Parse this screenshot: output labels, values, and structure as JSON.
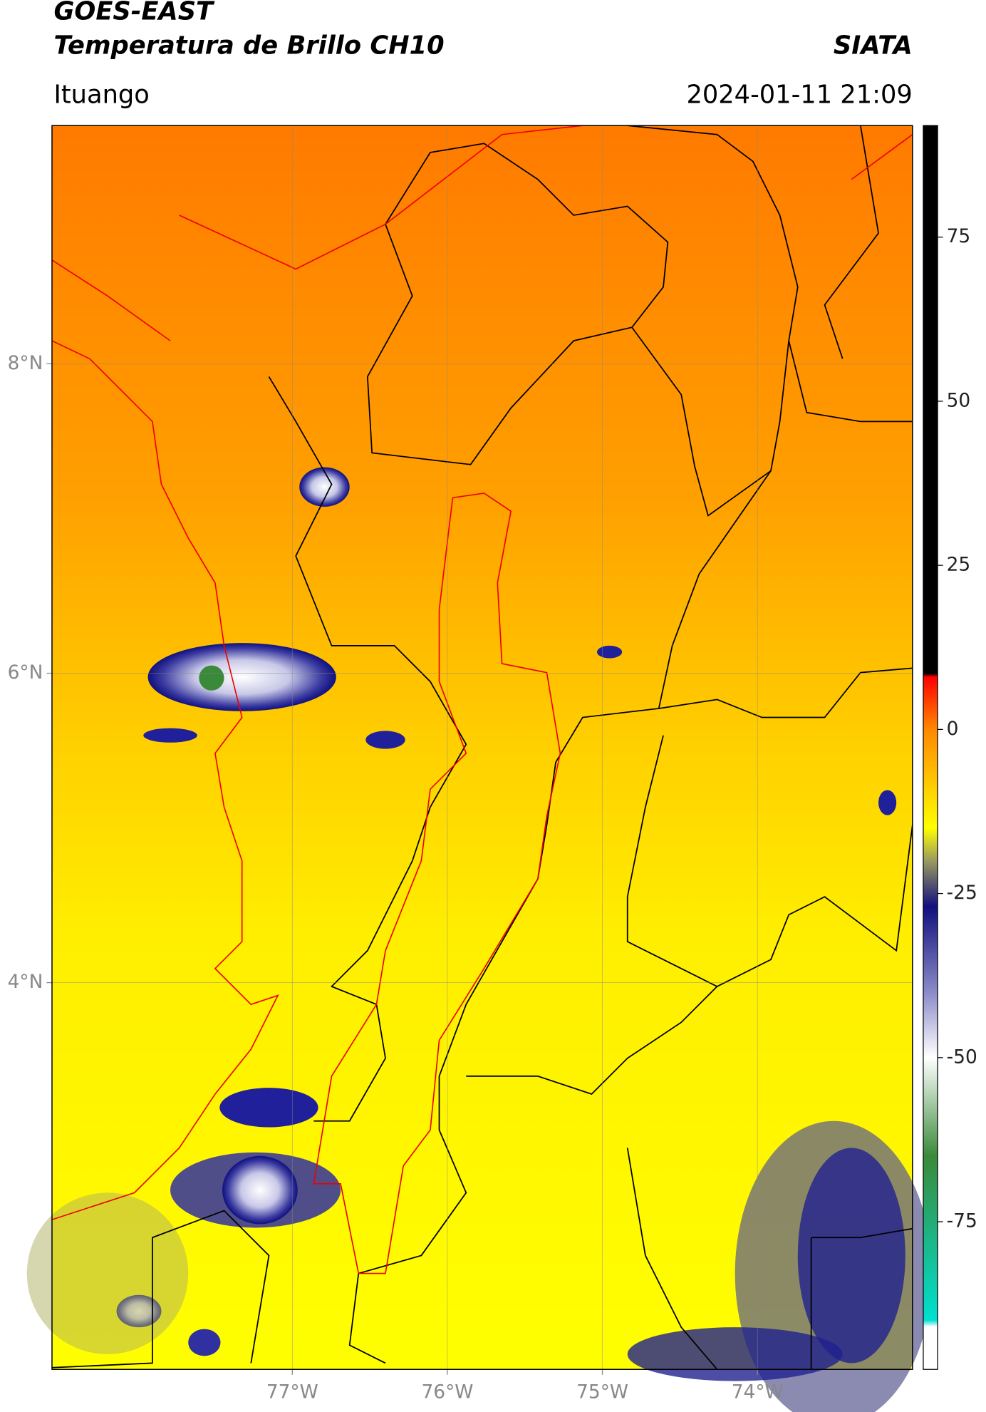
{
  "chart_data": {
    "type": "map",
    "title": "GOES-EAST",
    "subtitle": "Temperatura de Brillo CH10",
    "source": "SIATA",
    "location": "Ituango",
    "datetime": "2024-01-11 21:09",
    "xlim": [
      -78.55,
      -73.0
    ],
    "ylim": [
      1.5,
      9.54
    ],
    "xticks": [
      {
        "value": -77,
        "label": "77°W"
      },
      {
        "value": -76,
        "label": "76°W"
      },
      {
        "value": -75,
        "label": "75°W"
      },
      {
        "value": -74,
        "label": "74°W"
      }
    ],
    "yticks": [
      {
        "value": 8,
        "label": "8°N"
      },
      {
        "value": 6,
        "label": "6°N"
      },
      {
        "value": 4,
        "label": "4°N"
      }
    ],
    "grid": true,
    "clim": [
      -97.5,
      92
    ],
    "cticks": [
      75,
      50,
      25,
      0,
      -25,
      -50,
      -75
    ],
    "colormap": [
      {
        "value": 92,
        "color": "#000000"
      },
      {
        "value": 8.5,
        "color": "#000000"
      },
      {
        "value": 8,
        "color": "#ff0000"
      },
      {
        "value": 0,
        "color": "#ff8800"
      },
      {
        "value": -15,
        "color": "#ffff00"
      },
      {
        "value": -20,
        "color": "#9a9a60"
      },
      {
        "value": -27,
        "color": "#101080"
      },
      {
        "value": -40,
        "color": "#8a8ac8"
      },
      {
        "value": -50,
        "color": "#ffffff"
      },
      {
        "value": -65,
        "color": "#3a8a3a"
      },
      {
        "value": -90,
        "color": "#00e0d0"
      },
      {
        "value": -91,
        "color": "#ffffff"
      },
      {
        "value": -97.5,
        "color": "#ffffff"
      }
    ]
  }
}
